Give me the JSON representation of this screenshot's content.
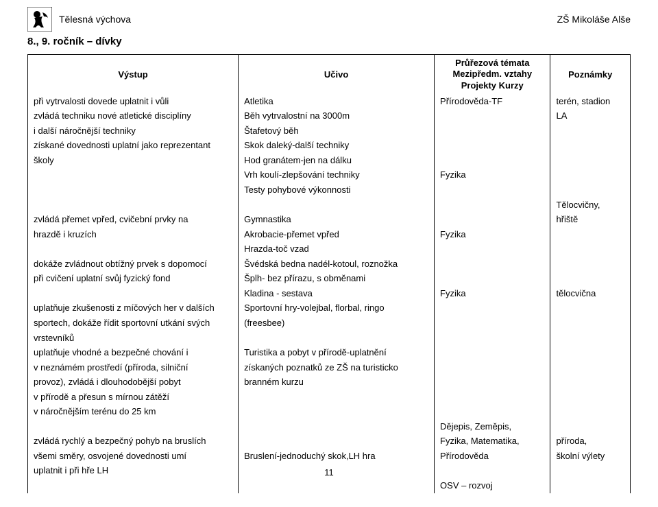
{
  "header": {
    "subject": "Tělesná výchova",
    "school": "ZŠ Mikoláše Alše"
  },
  "section_title": "8., 9. ročník – dívky",
  "table": {
    "headers": {
      "vystup": "Výstup",
      "ucivo": "Učivo",
      "prurez_line1": "Průřezová témata",
      "prurez_line2": "Mezipředm. vztahy",
      "prurez_line3": "Projekty Kurzy",
      "poznamky": "Poznámky"
    },
    "rows": [
      {
        "vystup": "při vytrvalosti dovede uplatnit i vůli",
        "ucivo": "Atletika",
        "prurez": "Přírodověda-TF",
        "pozn": "terén, stadion"
      },
      {
        "vystup": "zvládá techniku nové atletické disciplíny",
        "ucivo": "Běh vytrvalostní na 3000m",
        "prurez": "",
        "pozn": "LA"
      },
      {
        "vystup": "i další náročnější techniky",
        "ucivo": "Štafetový běh",
        "prurez": "",
        "pozn": ""
      },
      {
        "vystup": "získané dovednosti uplatní jako reprezentant",
        "ucivo": "Skok daleký-další techniky",
        "prurez": "",
        "pozn": ""
      },
      {
        "vystup": "školy",
        "ucivo": "Hod granátem-jen na dálku",
        "prurez": "",
        "pozn": ""
      },
      {
        "vystup": "",
        "ucivo": "Vrh koulí-zlepšování techniky",
        "prurez": "Fyzika",
        "pozn": ""
      },
      {
        "vystup": "",
        "ucivo": "Testy pohybové výkonnosti",
        "prurez": "",
        "pozn": ""
      },
      {
        "vystup": "",
        "ucivo": "",
        "prurez": "",
        "pozn": "Tělocvičny,"
      },
      {
        "vystup": "zvládá přemet vpřed, cvičební prvky na",
        "ucivo": "Gymnastika",
        "prurez": "",
        "pozn": "hřiště"
      },
      {
        "vystup": "hrazdě i kruzích",
        "ucivo": "Akrobacie-přemet vpřed",
        "prurez": "Fyzika",
        "pozn": ""
      },
      {
        "vystup": "",
        "ucivo": "Hrazda-toč vzad",
        "prurez": "",
        "pozn": ""
      },
      {
        "vystup": "dokáže zvládnout obtížný prvek s dopomocí",
        "ucivo": "Švédská bedna nadél-kotoul, roznožka",
        "prurez": "",
        "pozn": ""
      },
      {
        "vystup": "při cvičení uplatní svůj fyzický fond",
        "ucivo": "Šplh- bez přírazu, s obměnami",
        "prurez": "",
        "pozn": ""
      },
      {
        "vystup": "",
        "ucivo": "Kladina - sestava",
        "prurez": "Fyzika",
        "pozn": "tělocvična"
      },
      {
        "vystup": "uplatňuje zkušenosti z míčových her v dalších",
        "ucivo": "Sportovní hry-volejbal, florbal, ringo",
        "prurez": "",
        "pozn": ""
      },
      {
        "vystup": "sportech, dokáže řídit sportovní utkání svých",
        "ucivo": "(freesbee)",
        "prurez": "",
        "pozn": ""
      },
      {
        "vystup": "vrstevníků",
        "ucivo": "",
        "prurez": "",
        "pozn": ""
      },
      {
        "vystup": "uplatňuje vhodné a bezpečné chování i",
        "ucivo": "Turistika a pobyt v přírodě-uplatnění",
        "prurez": "",
        "pozn": ""
      },
      {
        "vystup": "v neznámém prostředí (příroda, silniční",
        "ucivo": "získaných poznatků ze ZŠ na turisticko",
        "prurez": "",
        "pozn": ""
      },
      {
        "vystup": "provoz), zvládá i dlouhodobější pobyt",
        "ucivo": "branném kurzu",
        "prurez": "",
        "pozn": ""
      },
      {
        "vystup": "v přírodě a přesun s mírnou zátěží",
        "ucivo": "",
        "prurez": "",
        "pozn": ""
      },
      {
        "vystup": "v náročnějším terénu do 25 km",
        "ucivo": "",
        "prurez": "",
        "pozn": ""
      },
      {
        "vystup": "",
        "ucivo": "",
        "prurez": "Dějepis, Zeměpis,",
        "pozn": ""
      },
      {
        "vystup": "zvládá rychlý a bezpečný pohyb na bruslích",
        "ucivo": "",
        "prurez": "Fyzika, Matematika,",
        "pozn": "příroda,"
      },
      {
        "vystup": "všemi směry, osvojené dovednosti umí",
        "ucivo": "Bruslení-jednoduchý skok,LH hra",
        "prurez": "Přírodověda",
        "pozn": "školní výlety"
      },
      {
        "vystup": "uplatnit i při hře LH",
        "ucivo": "",
        "prurez": "",
        "pozn": ""
      },
      {
        "vystup": "",
        "ucivo": "",
        "prurez": "OSV – rozvoj",
        "pozn": ""
      }
    ]
  },
  "page_number": "11"
}
